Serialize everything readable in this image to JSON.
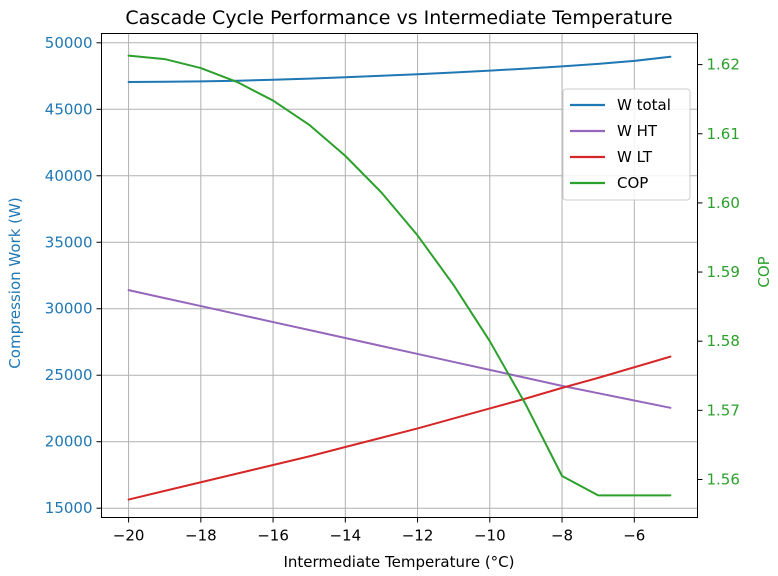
{
  "chart_data": {
    "type": "line",
    "title": "Cascade Cycle Performance vs Intermediate Temperature",
    "xlabel": "Intermediate Temperature (°C)",
    "ylabel_left": "Compression Work (W)",
    "ylabel_right": "COP",
    "x_ticks": [
      -20,
      -18,
      -16,
      -14,
      -12,
      -10,
      -8,
      -6
    ],
    "x_tick_labels": [
      "−20",
      "−18",
      "−16",
      "−14",
      "−12",
      "−10",
      "−8",
      "−6"
    ],
    "xlim": [
      -20.75,
      -4.25
    ],
    "y_left_ticks": [
      15000,
      20000,
      25000,
      30000,
      35000,
      40000,
      45000,
      50000
    ],
    "y_left_tick_labels": [
      "15000",
      "20000",
      "25000",
      "30000",
      "35000",
      "40000",
      "45000",
      "50000"
    ],
    "ylim_left": [
      14300,
      50700
    ],
    "y_right_ticks": [
      1.56,
      1.57,
      1.58,
      1.59,
      1.6,
      1.61,
      1.62
    ],
    "y_right_tick_labels": [
      "1.56",
      "1.57",
      "1.58",
      "1.59",
      "1.60",
      "1.61",
      "1.62"
    ],
    "ylim_right": [
      1.5545,
      1.6245
    ],
    "grid": true,
    "legend_position": "upper-right",
    "colors": {
      "left_axis": "#1f77b4",
      "right_axis": "#2ca02c"
    },
    "x": [
      -20,
      -19,
      -18,
      -17,
      -16,
      -15,
      -14,
      -13,
      -12,
      -11,
      -10,
      -9,
      -8,
      -7,
      -6,
      -5
    ],
    "series": [
      {
        "name": "W total",
        "axis": "left",
        "color": "#1f77b4",
        "values": [
          47050,
          47070,
          47100,
          47150,
          47220,
          47310,
          47410,
          47520,
          47640,
          47770,
          47910,
          48060,
          48230,
          48420,
          48640,
          48950
        ]
      },
      {
        "name": "W HT",
        "axis": "left",
        "color": "#9467bd",
        "values": [
          31400,
          30800,
          30200,
          29600,
          29000,
          28400,
          27800,
          27200,
          26600,
          26000,
          25400,
          24800,
          24200,
          23650,
          23100,
          22550
        ]
      },
      {
        "name": "W LT",
        "axis": "left",
        "color": "#d62728",
        "values": [
          15650,
          16300,
          16950,
          17600,
          18250,
          18900,
          19600,
          20300,
          21000,
          21750,
          22500,
          23250,
          24050,
          24800,
          25600,
          26400
        ]
      },
      {
        "name": "COP",
        "axis": "right",
        "color": "#2ca02c",
        "values": [
          1.6213,
          1.6208,
          1.6195,
          1.6175,
          1.6148,
          1.6113,
          1.6068,
          1.6015,
          1.5953,
          1.5881,
          1.58,
          1.5708,
          1.5605,
          1.5577,
          1.5577,
          1.5577
        ]
      }
    ]
  }
}
